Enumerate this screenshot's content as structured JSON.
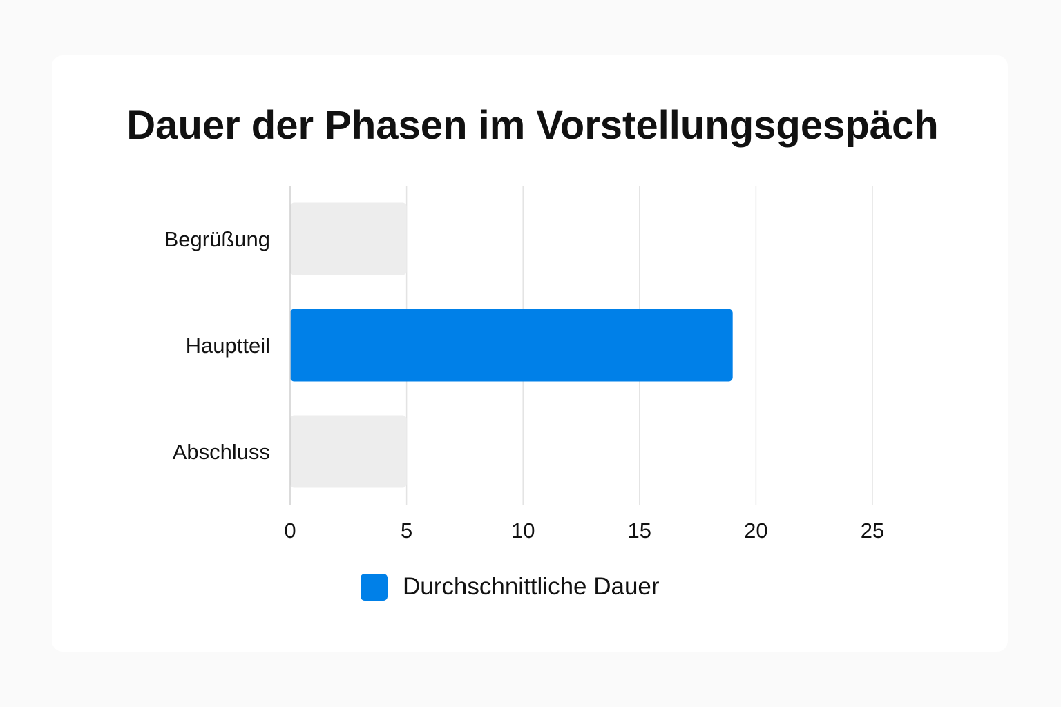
{
  "chart_data": {
    "type": "bar",
    "orientation": "horizontal",
    "title": "Dauer der Phasen im Vorstellungsgespäch",
    "categories": [
      "Begrüßung",
      "Hauptteil",
      "Abschluss"
    ],
    "series": [
      {
        "name": "Durchschnittliche Dauer",
        "values": [
          5,
          19,
          5
        ],
        "colors": [
          "#ededed",
          "#0080e8",
          "#ededed"
        ]
      }
    ],
    "xlim": [
      0,
      25
    ],
    "xticks": [
      "0",
      "5",
      "10",
      "15",
      "20",
      "25"
    ],
    "grid": true,
    "legend_position": "bottom-center",
    "xlabel": "",
    "ylabel": ""
  },
  "legend": {
    "label": "Durchschnittliche Dauer",
    "color": "#0080e8"
  }
}
